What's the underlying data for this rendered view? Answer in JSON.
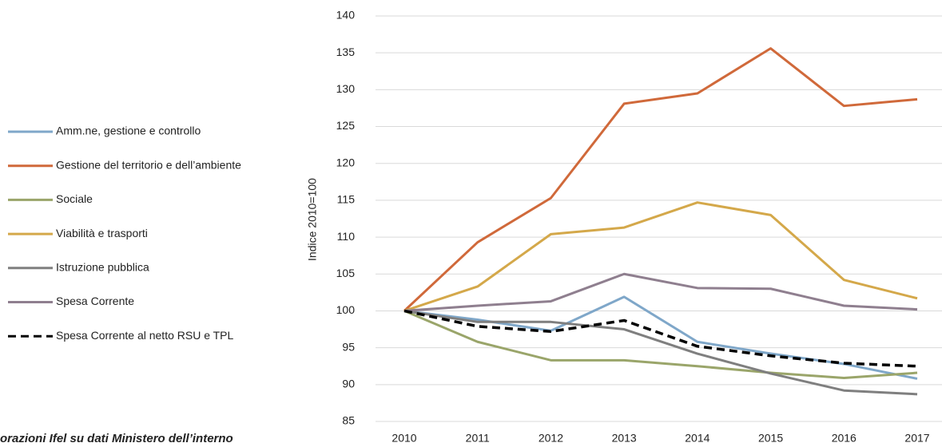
{
  "chart_data": {
    "type": "line",
    "y_label": "Indice 2010=100",
    "source": "orazioni Ifel su dati Ministero dell’interno",
    "categories": [
      "2010",
      "2011",
      "2012",
      "2013",
      "2014",
      "2015",
      "2016",
      "2017"
    ],
    "ylim": [
      85,
      140
    ],
    "yticks": [
      85,
      90,
      95,
      100,
      105,
      110,
      115,
      120,
      125,
      130,
      135,
      140
    ],
    "grid": true,
    "series": [
      {
        "name": "Amm.ne, gestione e controllo",
        "color": "#7fa7c9",
        "dash": "solid",
        "values": [
          100,
          98.8,
          97.3,
          101.9,
          95.8,
          94.2,
          92.8,
          90.8
        ]
      },
      {
        "name": "Gestione del territorio e dell’ambiente",
        "color": "#d0693a",
        "dash": "solid",
        "values": [
          100,
          109.3,
          115.3,
          128.1,
          129.5,
          135.6,
          127.8,
          128.7
        ]
      },
      {
        "name": "Sociale",
        "color": "#9aa56a",
        "dash": "solid",
        "values": [
          100,
          95.8,
          93.3,
          93.3,
          92.5,
          91.6,
          90.9,
          91.6
        ]
      },
      {
        "name": "Viabilità e trasporti",
        "color": "#d4a84a",
        "dash": "solid",
        "values": [
          100,
          103.3,
          110.4,
          111.3,
          114.7,
          113.0,
          104.2,
          101.7
        ]
      },
      {
        "name": "Istruzione pubblica",
        "color": "#7f7f7f",
        "dash": "solid",
        "values": [
          100,
          98.5,
          98.5,
          97.5,
          94.2,
          91.5,
          89.2,
          88.7
        ]
      },
      {
        "name": "Spesa Corrente",
        "color": "#8f7f8f",
        "dash": "solid",
        "values": [
          100,
          100.7,
          101.3,
          105.0,
          103.1,
          103.0,
          100.7,
          100.2
        ]
      },
      {
        "name": "Spesa Corrente al netto RSU e TPL",
        "color": "#000000",
        "dash": "dashed",
        "values": [
          100,
          97.9,
          97.2,
          98.7,
          95.2,
          93.9,
          92.9,
          92.5
        ]
      }
    ]
  }
}
